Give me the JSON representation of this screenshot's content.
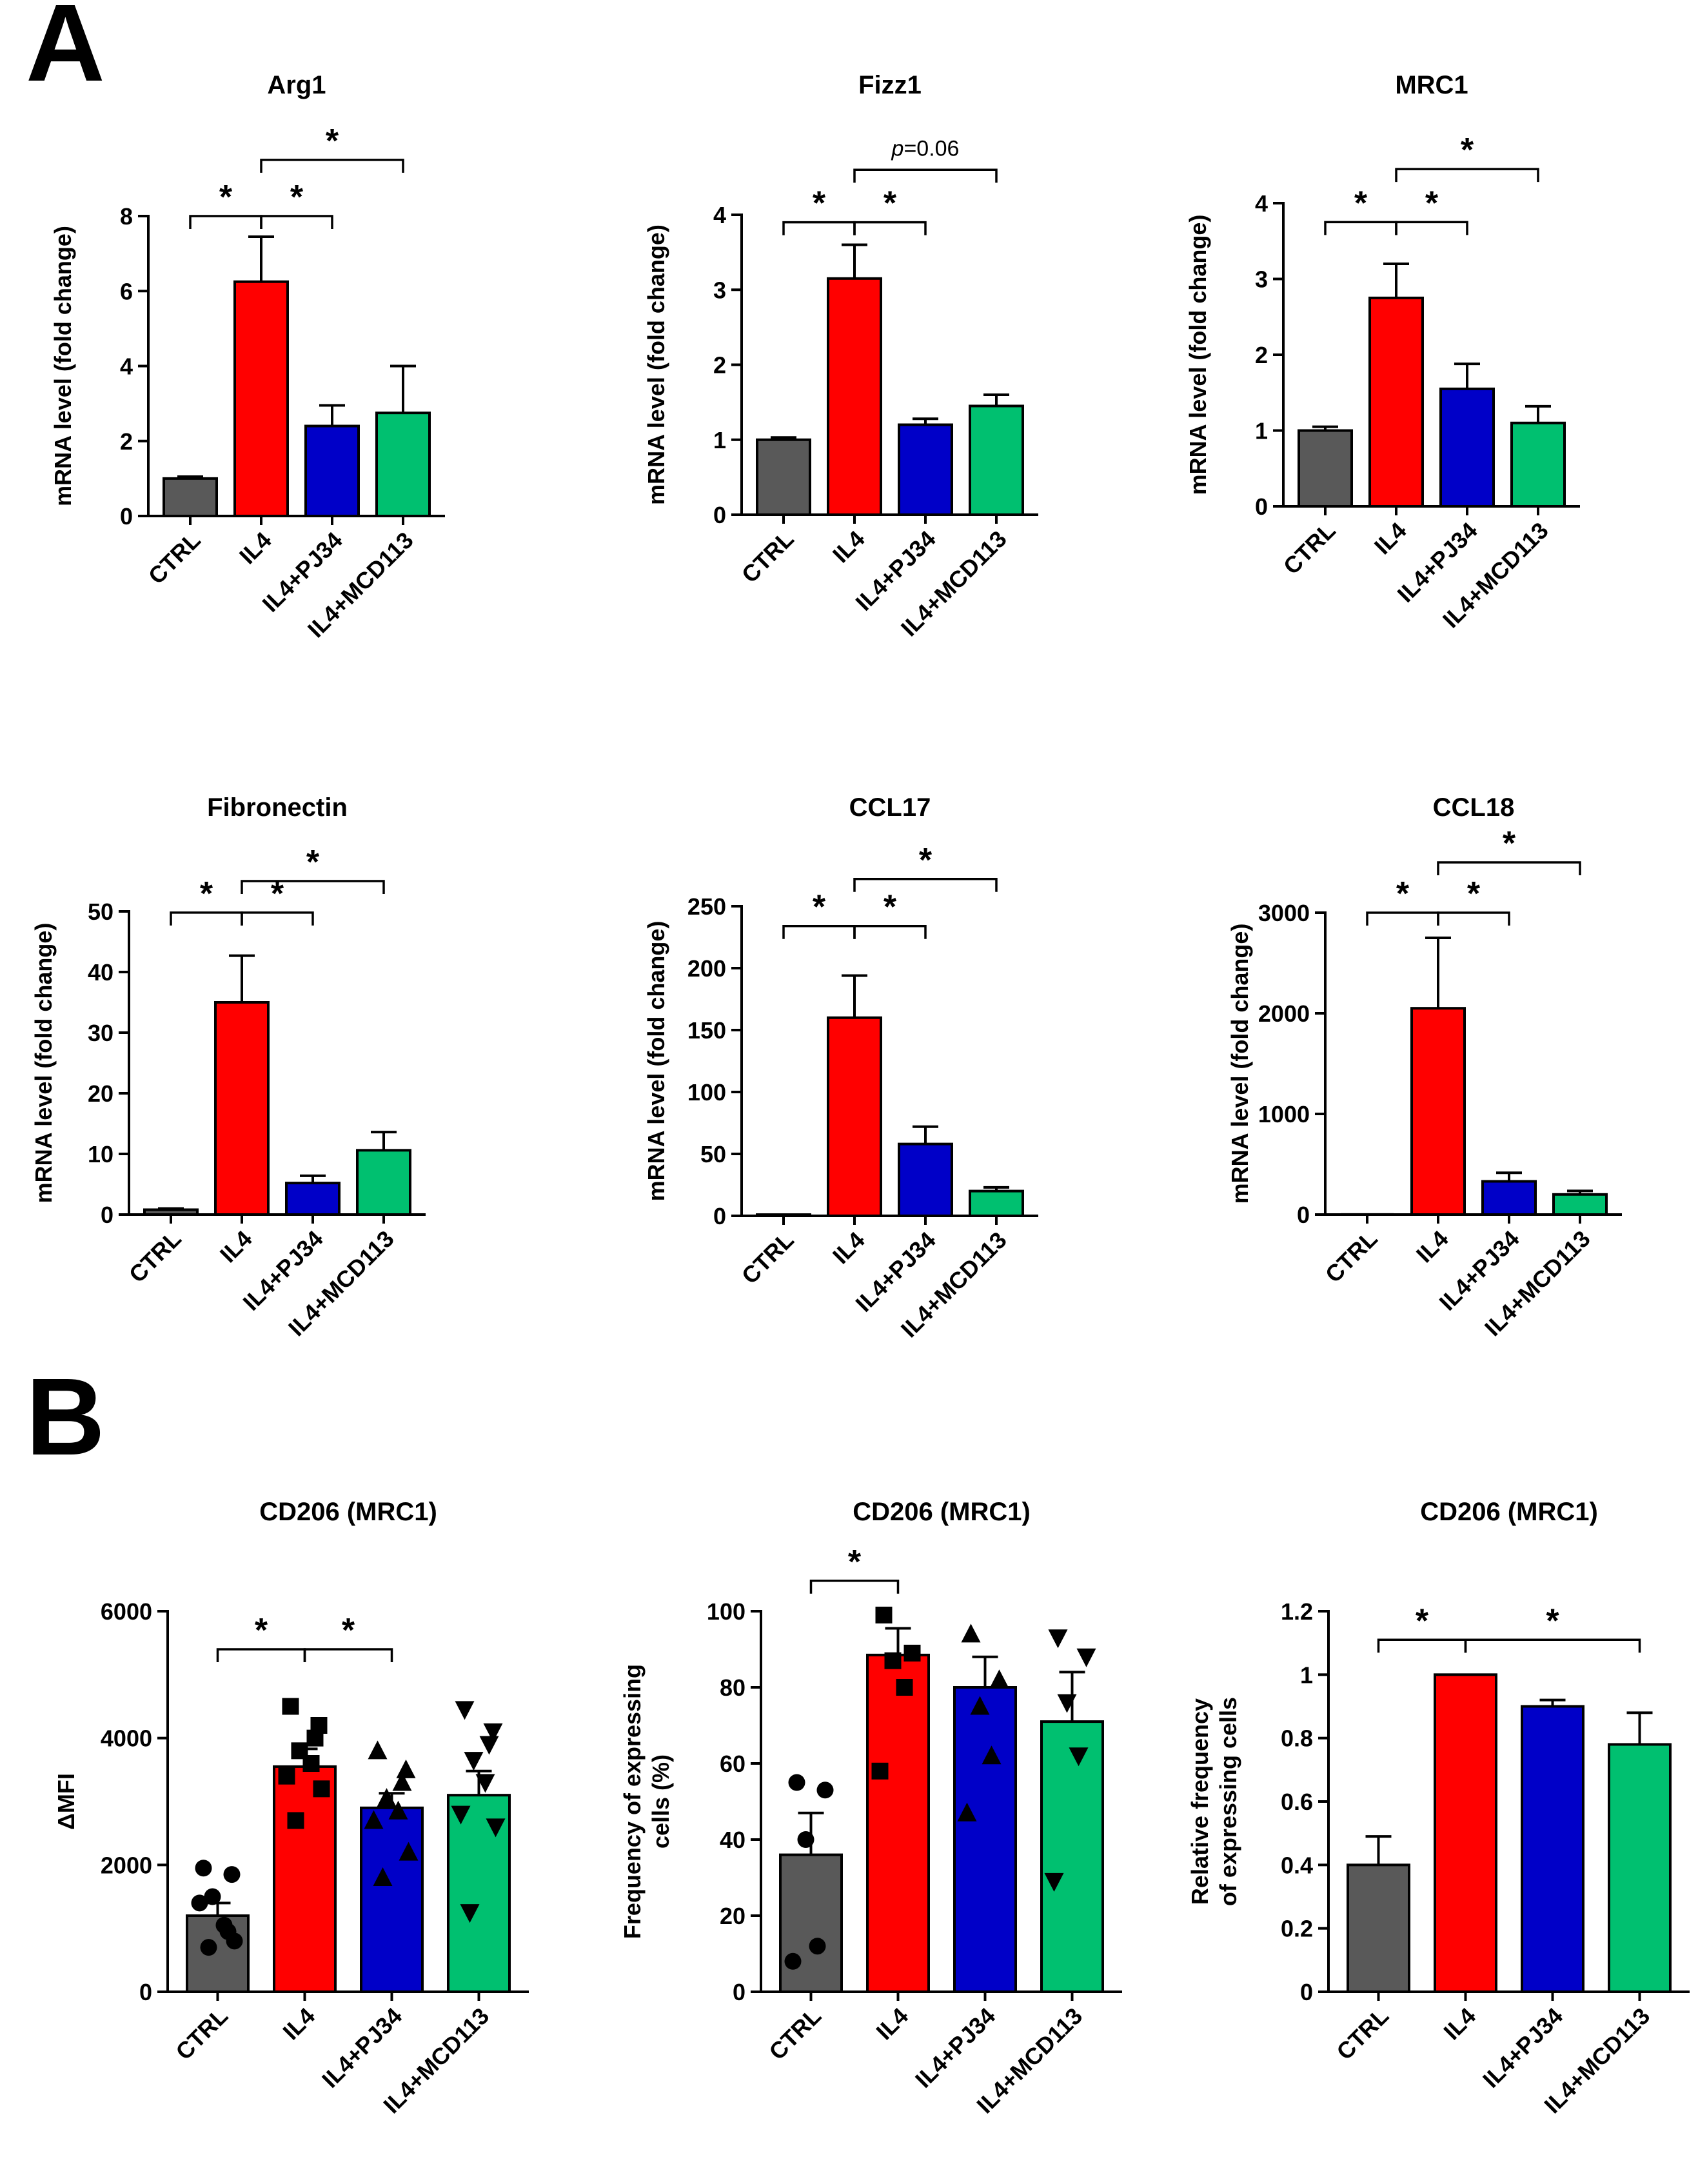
{
  "panel_labels": [
    "A",
    "B"
  ],
  "colors": {
    "CTRL": "#595959",
    "IL4": "#ff0000",
    "IL4+PJ34": "#0000c8",
    "IL4+MCD113": "#00c070",
    "axis": "#000000"
  },
  "chart_data": [
    {
      "type": "bar",
      "panel": "A",
      "title": "Arg1",
      "ylabel": "mRNA level (fold change)",
      "categories": [
        "CTRL",
        "IL4",
        "IL4+PJ34",
        "IL4+MCD113"
      ],
      "values": [
        1.0,
        6.25,
        2.4,
        2.75
      ],
      "errors": [
        0.05,
        1.2,
        0.55,
        1.25
      ],
      "ylim": [
        0,
        8
      ],
      "yticks": [
        0,
        2,
        4,
        6,
        8
      ],
      "ytick_labels": [
        "0",
        "2",
        "4",
        "6",
        "8"
      ],
      "significance": [
        {
          "from": 0,
          "to": 1,
          "label": "*",
          "level": 8.0
        },
        {
          "from": 1,
          "to": 2,
          "label": "*",
          "level": 8.0
        },
        {
          "from": 1,
          "to": 3,
          "label": "*",
          "level": 9.5
        }
      ]
    },
    {
      "type": "bar",
      "panel": "A",
      "title": "Fizz1",
      "ylabel": "mRNA level (fold change)",
      "categories": [
        "CTRL",
        "IL4",
        "IL4+PJ34",
        "IL4+MCD113"
      ],
      "values": [
        1.0,
        3.15,
        1.2,
        1.45
      ],
      "errors": [
        0.03,
        0.45,
        0.08,
        0.15
      ],
      "ylim": [
        0,
        4
      ],
      "yticks": [
        0,
        1,
        2,
        3,
        4
      ],
      "ytick_labels": [
        "0",
        "1",
        "2",
        "3",
        "4"
      ],
      "significance": [
        {
          "from": 0,
          "to": 1,
          "label": "*",
          "level": 3.9
        },
        {
          "from": 1,
          "to": 2,
          "label": "*",
          "level": 3.9
        },
        {
          "from": 1,
          "to": 3,
          "label": "p=0.06",
          "level": 4.6
        }
      ]
    },
    {
      "type": "bar",
      "panel": "A",
      "title": "MRC1",
      "ylabel": "mRNA level  (fold change)",
      "categories": [
        "CTRL",
        "IL4",
        "IL4+PJ34",
        "IL4+MCD113"
      ],
      "values": [
        1.0,
        2.75,
        1.55,
        1.1
      ],
      "errors": [
        0.05,
        0.45,
        0.33,
        0.22
      ],
      "ylim": [
        0,
        4
      ],
      "yticks": [
        0,
        1,
        2,
        3,
        4
      ],
      "ytick_labels": [
        "0",
        "1",
        "2",
        "3",
        "4"
      ],
      "significance": [
        {
          "from": 0,
          "to": 1,
          "label": "*",
          "level": 3.75
        },
        {
          "from": 1,
          "to": 2,
          "label": "*",
          "level": 3.75
        },
        {
          "from": 1,
          "to": 3,
          "label": "*",
          "level": 4.45
        }
      ]
    },
    {
      "type": "bar",
      "panel": "A",
      "title": "Fibronectin",
      "ylabel": "mRNA level (fold change)",
      "categories": [
        "CTRL",
        "IL4",
        "IL4+PJ34",
        "IL4+MCD113"
      ],
      "values": [
        0.8,
        35.0,
        5.2,
        10.6
      ],
      "errors": [
        0.2,
        7.7,
        1.2,
        3.0
      ],
      "ylim": [
        0,
        50
      ],
      "yticks": [
        0,
        10,
        20,
        30,
        40,
        50
      ],
      "ytick_labels": [
        "0",
        "10",
        "20",
        "30",
        "40",
        "50"
      ],
      "significance": [
        {
          "from": 0,
          "to": 1,
          "label": "*",
          "level": 49.8
        },
        {
          "from": 1,
          "to": 2,
          "label": "*",
          "level": 49.8
        },
        {
          "from": 1,
          "to": 3,
          "label": "*",
          "level": 55.0
        }
      ]
    },
    {
      "type": "bar",
      "panel": "A",
      "title": "CCL17",
      "ylabel": "mRNA level (fold change)",
      "categories": [
        "CTRL",
        "IL4",
        "IL4+PJ34",
        "IL4+MCD113"
      ],
      "values": [
        1,
        160,
        58,
        20
      ],
      "errors": [
        0,
        34,
        14,
        3
      ],
      "ylim": [
        0,
        250
      ],
      "yticks": [
        0,
        50,
        100,
        150,
        200,
        250
      ],
      "ytick_labels": [
        "0",
        "50",
        "100",
        "150",
        "200",
        "250"
      ],
      "significance": [
        {
          "from": 0,
          "to": 1,
          "label": "*",
          "level": 234
        },
        {
          "from": 1,
          "to": 2,
          "label": "*",
          "level": 234
        },
        {
          "from": 1,
          "to": 3,
          "label": "*",
          "level": 272
        }
      ]
    },
    {
      "type": "bar",
      "panel": "A",
      "title": "CCL18",
      "ylabel": "mRNA level (fold change)",
      "categories": [
        "CTRL",
        "IL4",
        "IL4+PJ34",
        "IL4+MCD113"
      ],
      "values": [
        1,
        2050,
        330,
        200
      ],
      "errors": [
        0,
        700,
        85,
        35
      ],
      "ylim": [
        0,
        3000
      ],
      "yticks": [
        0,
        1000,
        2000,
        3000
      ],
      "ytick_labels": [
        "0",
        "1000",
        "2000",
        "3000"
      ],
      "significance": [
        {
          "from": 0,
          "to": 1,
          "label": "*",
          "level": 3000
        },
        {
          "from": 1,
          "to": 2,
          "label": "*",
          "level": 3000
        },
        {
          "from": 1,
          "to": 3,
          "label": "*",
          "level": 3500
        }
      ]
    },
    {
      "type": "bar",
      "panel": "B",
      "title": "CD206 (MRC1)",
      "ylabel": "ΔMFI",
      "categories": [
        "CTRL",
        "IL4",
        "IL4+PJ34",
        "IL4+MCD113"
      ],
      "values": [
        1200,
        3550,
        2900,
        3100
      ],
      "errors": [
        200,
        280,
        230,
        380
      ],
      "ylim": [
        0,
        6000
      ],
      "yticks": [
        0,
        2000,
        4000,
        6000
      ],
      "ytick_labels": [
        "0",
        "2000",
        "4000",
        "6000"
      ],
      "points": [
        [
          1950,
          1850,
          1500,
          1050,
          1400,
          800,
          700,
          950
        ],
        [
          4500,
          4200,
          3800,
          3600,
          3400,
          3200,
          2700,
          4000
        ],
        [
          3800,
          3500,
          3050,
          2850,
          2700,
          2200,
          1800,
          3300
        ],
        [
          4450,
          4100,
          3650,
          3300,
          2800,
          2600,
          1250,
          3900
        ]
      ],
      "markers": [
        "circle",
        "square",
        "triangle-up",
        "triangle-down"
      ],
      "significance": [
        {
          "from": 0,
          "to": 1,
          "label": "*",
          "level": 5400
        },
        {
          "from": 1,
          "to": 2,
          "label": "*",
          "level": 5400
        }
      ]
    },
    {
      "type": "bar",
      "panel": "B",
      "title": "CD206 (MRC1)",
      "ylabel": "Frequency of expressing cells (%)",
      "ylabel_lines": [
        "Frequency of expressing",
        "cells (%)"
      ],
      "categories": [
        "CTRL",
        "IL4",
        "IL4+PJ34",
        "IL4+MCD113"
      ],
      "values": [
        36,
        88.5,
        80,
        71
      ],
      "errors": [
        11,
        7,
        8,
        13
      ],
      "ylim": [
        0,
        100
      ],
      "yticks": [
        0,
        20,
        40,
        60,
        80,
        100
      ],
      "ytick_labels": [
        "0",
        "20",
        "40",
        "60",
        "80",
        "100"
      ],
      "points": [
        [
          55,
          53,
          40,
          12,
          8
        ],
        [
          99,
          89,
          87,
          80,
          58
        ],
        [
          94,
          82,
          75,
          62,
          47
        ],
        [
          93,
          88,
          76,
          62,
          29
        ]
      ],
      "markers": [
        "circle",
        "square",
        "triangle-up",
        "triangle-down"
      ],
      "significance": [
        {
          "from": 0,
          "to": 1,
          "label": "*",
          "level": 108
        }
      ]
    },
    {
      "type": "bar",
      "panel": "B",
      "title": "CD206 (MRC1)",
      "ylabel": "Relative frequency of expressing cells",
      "ylabel_lines": [
        "Relative frequency",
        "of expressing cells"
      ],
      "categories": [
        "CTRL",
        "IL4",
        "IL4+PJ34",
        "IL4+MCD113"
      ],
      "values": [
        0.4,
        1.0,
        0.9,
        0.78
      ],
      "errors": [
        0.09,
        0,
        0.02,
        0.1
      ],
      "ylim": [
        0,
        1.2
      ],
      "yticks": [
        0,
        0.2,
        0.4,
        0.6,
        0.8,
        1.0,
        1.2
      ],
      "ytick_labels": [
        "0",
        "0.2",
        "0.4",
        "0.6",
        "0.8",
        "1",
        "1.2"
      ],
      "significance": [
        {
          "from": 0,
          "to": 1,
          "label": "*",
          "level": 1.11
        },
        {
          "from": 1,
          "to": 3,
          "label": "*",
          "level": 1.11
        }
      ]
    }
  ]
}
